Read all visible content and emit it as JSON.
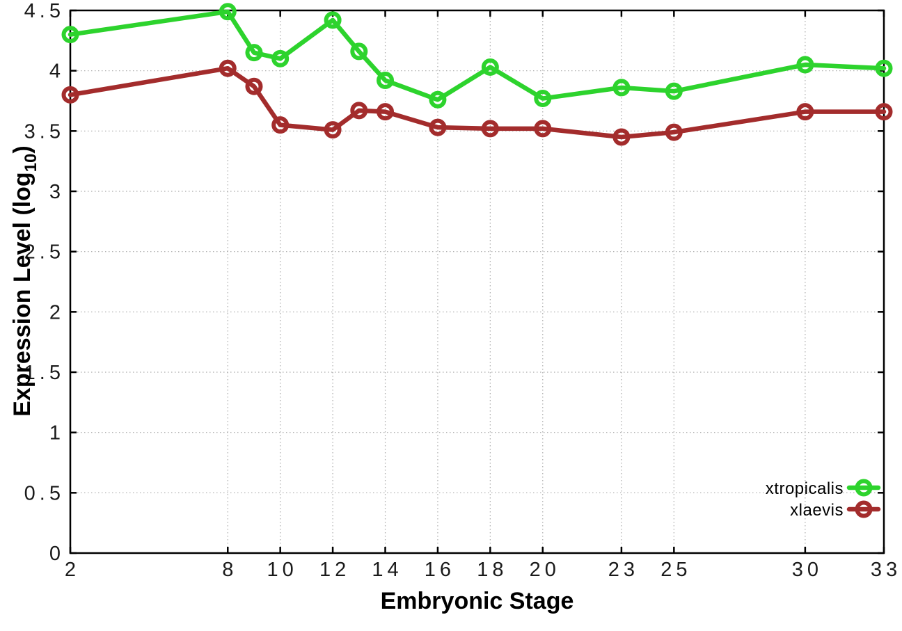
{
  "figure": {
    "background": "#ffffff",
    "x_axis_title": "Embryonic Stage",
    "y_axis_title_main": "Expression Level (log",
    "y_axis_title_sub": "10",
    "y_axis_title_close": ")"
  },
  "chart_data": {
    "type": "line",
    "title": "",
    "xlabel": "Embryonic Stage",
    "ylabel": "Expression Level (log10)",
    "x": [
      2,
      8,
      9,
      10,
      12,
      13,
      14,
      16,
      18,
      20,
      23,
      25,
      30,
      33
    ],
    "series": [
      {
        "name": "xtropicalis",
        "color": "#2dd32d",
        "values": [
          4.3,
          4.49,
          4.15,
          4.1,
          4.42,
          4.16,
          3.92,
          3.76,
          4.03,
          3.77,
          3.86,
          3.83,
          4.05,
          4.02
        ]
      },
      {
        "name": "xlaevis",
        "color": "#a32c2c",
        "values": [
          3.8,
          4.02,
          3.87,
          3.55,
          3.51,
          3.67,
          3.66,
          3.53,
          3.52,
          3.52,
          3.45,
          3.49,
          3.66,
          3.66
        ]
      }
    ],
    "xlim": [
      2,
      33
    ],
    "ylim": [
      0,
      4.5
    ],
    "x_tick_values": [
      2,
      8,
      10,
      12,
      14,
      16,
      18,
      20,
      23,
      25,
      30,
      33
    ],
    "x_tick_labels": [
      "2",
      "8",
      "10",
      "12",
      "14",
      "16",
      "18",
      "20",
      "23",
      "25",
      "30",
      "33"
    ],
    "y_tick_values": [
      0,
      0.5,
      1,
      1.5,
      2,
      2.5,
      3,
      3.5,
      4,
      4.5
    ],
    "y_tick_labels": [
      "0",
      "0.5",
      "1",
      "1.5",
      "2",
      "2.5",
      "3",
      "3.5",
      "4",
      "4.5"
    ],
    "grid": true,
    "grid_color": "#aaaaaa",
    "axis_color": "#000000",
    "tick_label_color": "#1a1a1a",
    "legend_position": "bottom-right",
    "marker": "open-circle",
    "line_width": 6.5,
    "marker_radius": 9.5,
    "marker_stroke": 6
  }
}
